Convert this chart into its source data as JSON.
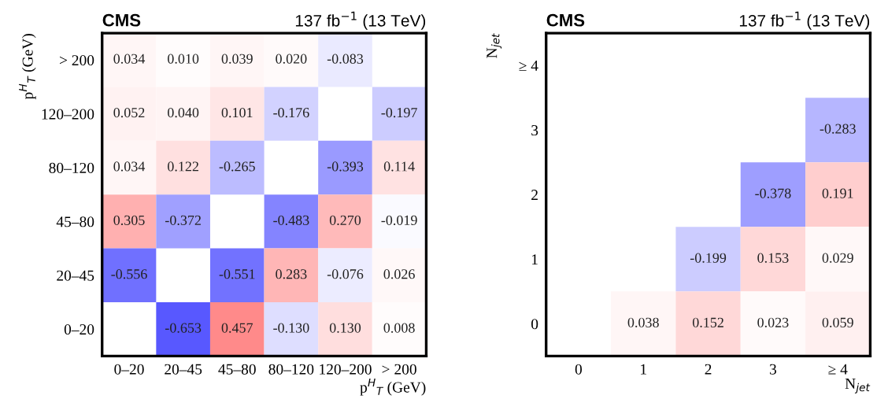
{
  "chart_data": [
    {
      "type": "heatmap",
      "title": "CMS",
      "subtitle": "137 fb$^{−1}$ (13 TeV)",
      "xlabel": "p$^{H}$$_{T}$ (GeV)",
      "ylabel": "p$^{H}$$_{T}$ (GeV)",
      "categories": [
        "0–20",
        "20–45",
        "45–80",
        "80–120",
        "120–200",
        "> 200"
      ],
      "y_categories": [
        "> 200",
        "120–200",
        "80–120",
        "45–80",
        "20–45",
        "0–20"
      ],
      "cells": [
        [
          0.034,
          0.01,
          0.039,
          0.02,
          -0.083,
          null
        ],
        [
          0.052,
          0.04,
          0.101,
          -0.176,
          null,
          -0.197
        ],
        [
          0.034,
          0.122,
          -0.265,
          null,
          -0.393,
          0.114
        ],
        [
          0.305,
          -0.372,
          null,
          -0.483,
          0.27,
          -0.019
        ],
        [
          -0.556,
          null,
          -0.551,
          0.283,
          -0.076,
          0.026
        ],
        [
          null,
          -0.653,
          0.457,
          -0.13,
          0.13,
          0.008
        ]
      ],
      "cell_labels": [
        [
          "0.034",
          "0.010",
          "0.039",
          "0.020",
          "-0.083",
          null
        ],
        [
          "0.052",
          "0.040",
          "0.101",
          "-0.176",
          null,
          "-0.197"
        ],
        [
          "0.034",
          "0.122",
          "-0.265",
          null,
          "-0.393",
          "0.114"
        ],
        [
          "0.305",
          "-0.372",
          null,
          "-0.483",
          "0.270",
          "-0.019"
        ],
        [
          "-0.556",
          null,
          "-0.551",
          "0.283",
          "-0.076",
          "0.026"
        ],
        [
          null,
          "-0.653",
          "0.457",
          "-0.130",
          "0.130",
          "0.008"
        ]
      ]
    },
    {
      "type": "heatmap",
      "title": "CMS",
      "subtitle": "137 fb$^{−1}$ (13 TeV)",
      "xlabel": "N$_{jet}$",
      "ylabel": "N$_{jet}$",
      "categories": [
        "0",
        "1",
        "2",
        "3",
        "≥ 4"
      ],
      "y_categories": [
        "≥ 4",
        "3",
        "2",
        "1",
        "0"
      ],
      "cells": [
        [
          null,
          null,
          null,
          null,
          null
        ],
        [
          null,
          null,
          null,
          null,
          -0.283
        ],
        [
          null,
          null,
          null,
          -0.378,
          0.191
        ],
        [
          null,
          null,
          -0.199,
          0.153,
          0.029
        ],
        [
          null,
          0.038,
          0.152,
          0.023,
          0.059
        ]
      ],
      "cell_labels": [
        [
          null,
          null,
          null,
          null,
          null
        ],
        [
          null,
          null,
          null,
          null,
          "-0.283"
        ],
        [
          null,
          null,
          null,
          "-0.378",
          "0.191"
        ],
        [
          null,
          null,
          "-0.199",
          "0.153",
          "0.029"
        ],
        [
          null,
          "0.038",
          "0.152",
          "0.023",
          "0.059"
        ]
      ]
    }
  ]
}
